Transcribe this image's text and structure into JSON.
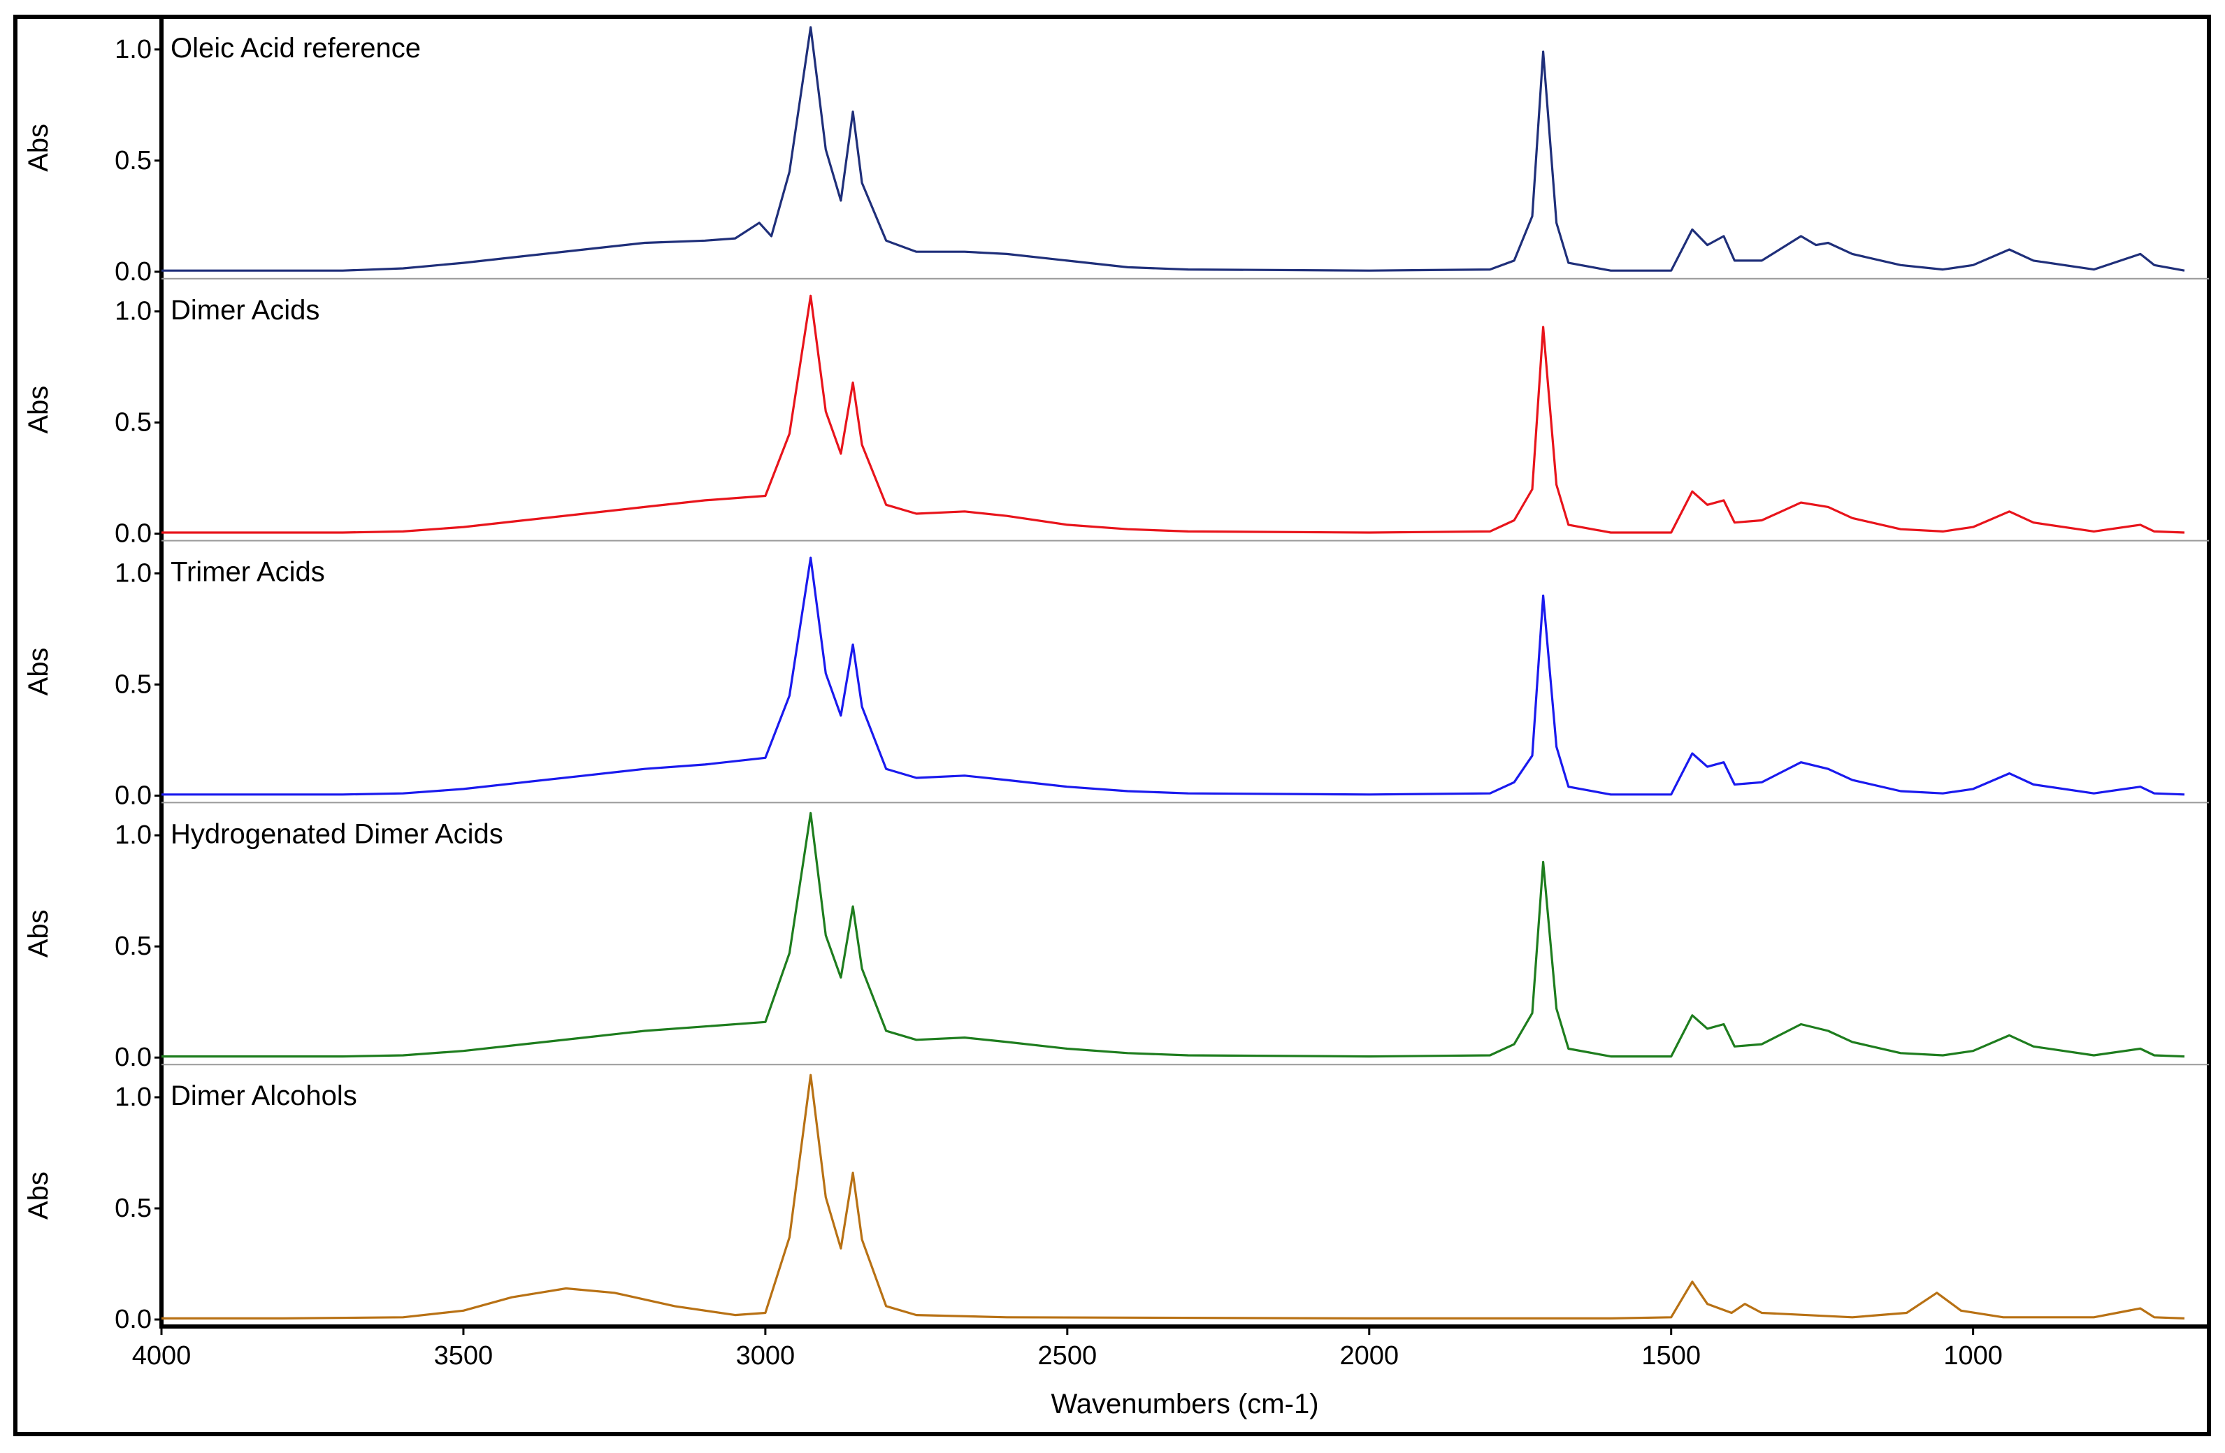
{
  "chart_data": {
    "type": "line",
    "layout": "stacked-panels",
    "xlabel": "Wavenumbers (cm-1)",
    "x_reversed": true,
    "xlim": [
      4000,
      650
    ],
    "x_ticks": [
      4000,
      3500,
      3000,
      2500,
      2000,
      1500,
      1000
    ],
    "ylabel": "Abs",
    "ylim": [
      0,
      1.1
    ],
    "y_ticks": [
      0.0,
      0.5,
      1.0
    ],
    "y_tick_labels": [
      "0.0",
      "0.5",
      "1.0"
    ],
    "panels": [
      {
        "label": "Oleic Acid reference",
        "color": "#1f2f7a",
        "points": [
          [
            4000,
            0.005
          ],
          [
            3700,
            0.005
          ],
          [
            3600,
            0.015
          ],
          [
            3500,
            0.04
          ],
          [
            3400,
            0.07
          ],
          [
            3300,
            0.1
          ],
          [
            3200,
            0.13
          ],
          [
            3100,
            0.14
          ],
          [
            3050,
            0.15
          ],
          [
            3010,
            0.22
          ],
          [
            2990,
            0.16
          ],
          [
            2960,
            0.45
          ],
          [
            2925,
            1.1
          ],
          [
            2900,
            0.55
          ],
          [
            2875,
            0.32
          ],
          [
            2855,
            0.72
          ],
          [
            2840,
            0.4
          ],
          [
            2800,
            0.14
          ],
          [
            2750,
            0.09
          ],
          [
            2670,
            0.09
          ],
          [
            2600,
            0.08
          ],
          [
            2500,
            0.05
          ],
          [
            2400,
            0.02
          ],
          [
            2300,
            0.01
          ],
          [
            2000,
            0.005
          ],
          [
            1800,
            0.01
          ],
          [
            1760,
            0.05
          ],
          [
            1730,
            0.25
          ],
          [
            1712,
            0.99
          ],
          [
            1690,
            0.22
          ],
          [
            1670,
            0.04
          ],
          [
            1600,
            0.005
          ],
          [
            1500,
            0.005
          ],
          [
            1465,
            0.19
          ],
          [
            1440,
            0.12
          ],
          [
            1413,
            0.16
          ],
          [
            1395,
            0.05
          ],
          [
            1350,
            0.05
          ],
          [
            1285,
            0.16
          ],
          [
            1260,
            0.12
          ],
          [
            1240,
            0.13
          ],
          [
            1200,
            0.08
          ],
          [
            1120,
            0.03
          ],
          [
            1050,
            0.01
          ],
          [
            1000,
            0.03
          ],
          [
            940,
            0.1
          ],
          [
            900,
            0.05
          ],
          [
            800,
            0.01
          ],
          [
            723,
            0.08
          ],
          [
            700,
            0.03
          ],
          [
            650,
            0.005
          ]
        ]
      },
      {
        "label": "Dimer Acids",
        "color": "#e8141b",
        "points": [
          [
            4000,
            0.005
          ],
          [
            3700,
            0.005
          ],
          [
            3600,
            0.01
          ],
          [
            3500,
            0.03
          ],
          [
            3400,
            0.06
          ],
          [
            3300,
            0.09
          ],
          [
            3200,
            0.12
          ],
          [
            3100,
            0.15
          ],
          [
            3000,
            0.17
          ],
          [
            2960,
            0.45
          ],
          [
            2925,
            1.07
          ],
          [
            2900,
            0.55
          ],
          [
            2875,
            0.36
          ],
          [
            2855,
            0.68
          ],
          [
            2840,
            0.4
          ],
          [
            2800,
            0.13
          ],
          [
            2750,
            0.09
          ],
          [
            2670,
            0.1
          ],
          [
            2600,
            0.08
          ],
          [
            2500,
            0.04
          ],
          [
            2400,
            0.02
          ],
          [
            2300,
            0.01
          ],
          [
            2000,
            0.005
          ],
          [
            1800,
            0.01
          ],
          [
            1760,
            0.06
          ],
          [
            1730,
            0.2
          ],
          [
            1712,
            0.93
          ],
          [
            1690,
            0.22
          ],
          [
            1670,
            0.04
          ],
          [
            1600,
            0.005
          ],
          [
            1500,
            0.005
          ],
          [
            1465,
            0.19
          ],
          [
            1440,
            0.13
          ],
          [
            1413,
            0.15
          ],
          [
            1395,
            0.05
          ],
          [
            1350,
            0.06
          ],
          [
            1285,
            0.14
          ],
          [
            1240,
            0.12
          ],
          [
            1200,
            0.07
          ],
          [
            1120,
            0.02
          ],
          [
            1050,
            0.01
          ],
          [
            1000,
            0.03
          ],
          [
            940,
            0.1
          ],
          [
            900,
            0.05
          ],
          [
            800,
            0.01
          ],
          [
            723,
            0.04
          ],
          [
            700,
            0.01
          ],
          [
            650,
            0.005
          ]
        ]
      },
      {
        "label": "Trimer Acids",
        "color": "#1a1aee",
        "points": [
          [
            4000,
            0.005
          ],
          [
            3700,
            0.005
          ],
          [
            3600,
            0.01
          ],
          [
            3500,
            0.03
          ],
          [
            3400,
            0.06
          ],
          [
            3300,
            0.09
          ],
          [
            3200,
            0.12
          ],
          [
            3100,
            0.14
          ],
          [
            3000,
            0.17
          ],
          [
            2960,
            0.45
          ],
          [
            2925,
            1.07
          ],
          [
            2900,
            0.55
          ],
          [
            2875,
            0.36
          ],
          [
            2855,
            0.68
          ],
          [
            2840,
            0.4
          ],
          [
            2800,
            0.12
          ],
          [
            2750,
            0.08
          ],
          [
            2670,
            0.09
          ],
          [
            2600,
            0.07
          ],
          [
            2500,
            0.04
          ],
          [
            2400,
            0.02
          ],
          [
            2300,
            0.01
          ],
          [
            2000,
            0.005
          ],
          [
            1800,
            0.01
          ],
          [
            1760,
            0.06
          ],
          [
            1730,
            0.18
          ],
          [
            1712,
            0.9
          ],
          [
            1690,
            0.22
          ],
          [
            1670,
            0.04
          ],
          [
            1600,
            0.005
          ],
          [
            1500,
            0.005
          ],
          [
            1465,
            0.19
          ],
          [
            1440,
            0.13
          ],
          [
            1413,
            0.15
          ],
          [
            1395,
            0.05
          ],
          [
            1350,
            0.06
          ],
          [
            1285,
            0.15
          ],
          [
            1240,
            0.12
          ],
          [
            1200,
            0.07
          ],
          [
            1120,
            0.02
          ],
          [
            1050,
            0.01
          ],
          [
            1000,
            0.03
          ],
          [
            940,
            0.1
          ],
          [
            900,
            0.05
          ],
          [
            800,
            0.01
          ],
          [
            723,
            0.04
          ],
          [
            700,
            0.01
          ],
          [
            650,
            0.005
          ]
        ]
      },
      {
        "label": "Hydrogenated Dimer Acids",
        "color": "#1e7d1e",
        "points": [
          [
            4000,
            0.005
          ],
          [
            3700,
            0.005
          ],
          [
            3600,
            0.01
          ],
          [
            3500,
            0.03
          ],
          [
            3400,
            0.06
          ],
          [
            3300,
            0.09
          ],
          [
            3200,
            0.12
          ],
          [
            3100,
            0.14
          ],
          [
            3000,
            0.16
          ],
          [
            2960,
            0.47
          ],
          [
            2925,
            1.1
          ],
          [
            2900,
            0.55
          ],
          [
            2875,
            0.36
          ],
          [
            2855,
            0.68
          ],
          [
            2840,
            0.4
          ],
          [
            2800,
            0.12
          ],
          [
            2750,
            0.08
          ],
          [
            2670,
            0.09
          ],
          [
            2600,
            0.07
          ],
          [
            2500,
            0.04
          ],
          [
            2400,
            0.02
          ],
          [
            2300,
            0.01
          ],
          [
            2000,
            0.005
          ],
          [
            1800,
            0.01
          ],
          [
            1760,
            0.06
          ],
          [
            1730,
            0.2
          ],
          [
            1712,
            0.88
          ],
          [
            1690,
            0.22
          ],
          [
            1670,
            0.04
          ],
          [
            1600,
            0.005
          ],
          [
            1500,
            0.005
          ],
          [
            1465,
            0.19
          ],
          [
            1440,
            0.13
          ],
          [
            1413,
            0.15
          ],
          [
            1395,
            0.05
          ],
          [
            1350,
            0.06
          ],
          [
            1285,
            0.15
          ],
          [
            1240,
            0.12
          ],
          [
            1200,
            0.07
          ],
          [
            1120,
            0.02
          ],
          [
            1050,
            0.01
          ],
          [
            1000,
            0.03
          ],
          [
            940,
            0.1
          ],
          [
            900,
            0.05
          ],
          [
            800,
            0.01
          ],
          [
            723,
            0.04
          ],
          [
            700,
            0.01
          ],
          [
            650,
            0.005
          ]
        ]
      },
      {
        "label": "Dimer Alcohols",
        "color": "#b87114",
        "points": [
          [
            4000,
            0.005
          ],
          [
            3800,
            0.005
          ],
          [
            3600,
            0.01
          ],
          [
            3500,
            0.04
          ],
          [
            3420,
            0.1
          ],
          [
            3330,
            0.14
          ],
          [
            3250,
            0.12
          ],
          [
            3150,
            0.06
          ],
          [
            3050,
            0.02
          ],
          [
            3000,
            0.03
          ],
          [
            2960,
            0.37
          ],
          [
            2925,
            1.1
          ],
          [
            2900,
            0.55
          ],
          [
            2875,
            0.32
          ],
          [
            2855,
            0.66
          ],
          [
            2840,
            0.36
          ],
          [
            2800,
            0.06
          ],
          [
            2750,
            0.02
          ],
          [
            2600,
            0.01
          ],
          [
            2000,
            0.005
          ],
          [
            1600,
            0.005
          ],
          [
            1500,
            0.01
          ],
          [
            1465,
            0.17
          ],
          [
            1440,
            0.07
          ],
          [
            1400,
            0.03
          ],
          [
            1378,
            0.07
          ],
          [
            1350,
            0.03
          ],
          [
            1200,
            0.01
          ],
          [
            1110,
            0.03
          ],
          [
            1060,
            0.12
          ],
          [
            1020,
            0.04
          ],
          [
            950,
            0.01
          ],
          [
            800,
            0.01
          ],
          [
            723,
            0.05
          ],
          [
            700,
            0.01
          ],
          [
            650,
            0.005
          ]
        ]
      }
    ]
  }
}
